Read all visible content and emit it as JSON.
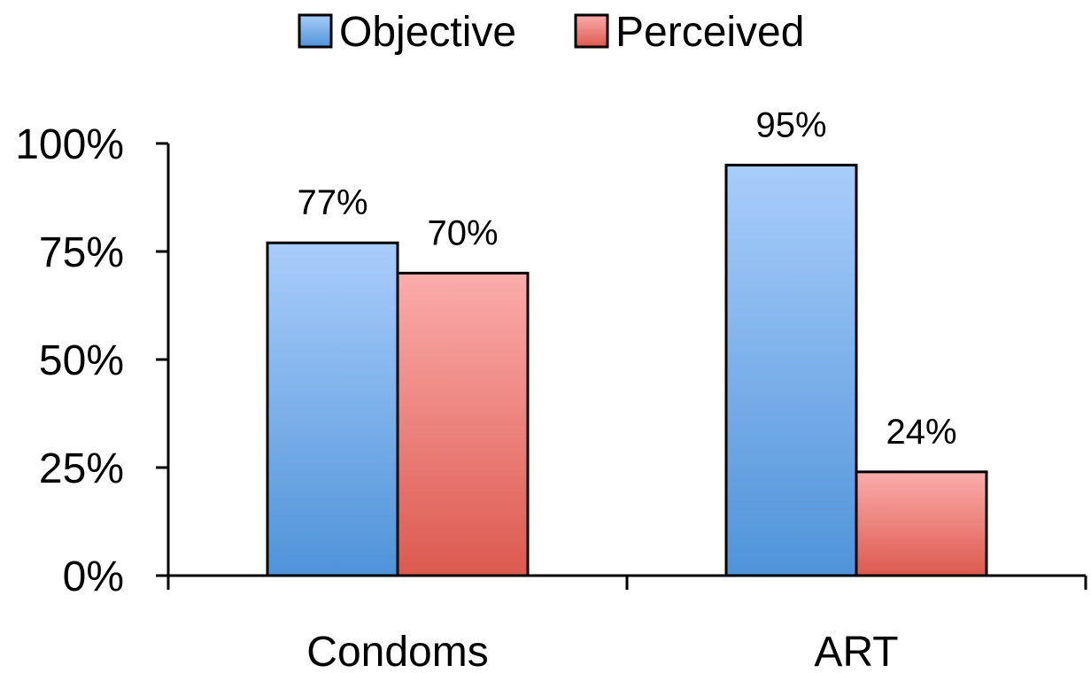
{
  "chart_data": {
    "type": "bar",
    "categories": [
      "Condoms",
      "ART"
    ],
    "series": [
      {
        "name": "Objective",
        "values": [
          77,
          95
        ],
        "labels": [
          "77%",
          "95%"
        ]
      },
      {
        "name": "Perceived",
        "values": [
          70,
          24
        ],
        "labels": [
          "70%",
          "24%"
        ]
      }
    ],
    "ylim": [
      0,
      100
    ],
    "yticks": [
      0,
      25,
      50,
      75,
      100
    ],
    "ytick_labels": [
      "0%",
      "25%",
      "50%",
      "75%",
      "100%"
    ],
    "title": "",
    "xlabel": "",
    "ylabel": "",
    "grid": false,
    "legend_position": "top-center",
    "colors": {
      "Objective": {
        "top": "#a9cdfb",
        "bottom": "#4f93d9"
      },
      "Perceived": {
        "top": "#fbacab",
        "bottom": "#dc5a4f"
      }
    }
  }
}
